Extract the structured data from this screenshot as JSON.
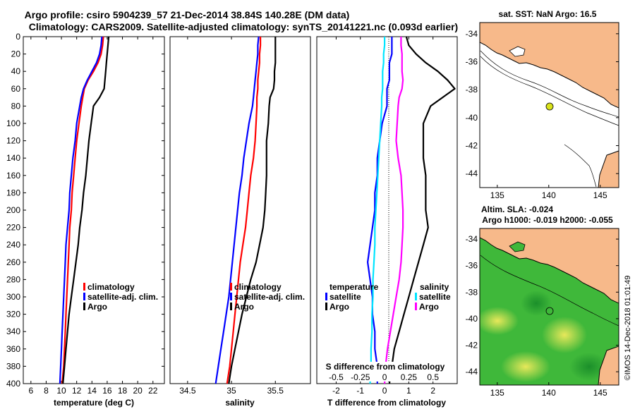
{
  "title": {
    "line1": "Argo profile: csiro 5904239_57 21-Dec-2014 38.84S 140.28E (DM data)",
    "line2": "Climatology: CARS2009. Satellite-adjusted climatology: synTS_20141221.nc (0.093d earlier)"
  },
  "colors": {
    "climatology": "#ff0000",
    "satellite": "#0000ff",
    "argo": "#000000",
    "sal_satellite": "#00e5ff",
    "sal_argo": "#ff00ff",
    "land": "#f7b98a",
    "ocean": "#ffffff",
    "sla_green": "#22a832"
  },
  "chart_data": [
    {
      "type": "line",
      "name": "temperature",
      "xlabel": "temperature (deg C)",
      "ylabel": "",
      "xlim": [
        5,
        23.5
      ],
      "ylim": [
        400,
        0
      ],
      "xticks": [
        "6",
        "8",
        "10",
        "12",
        "14",
        "16",
        "18",
        "20",
        "22"
      ],
      "yticks": [
        "0",
        "20",
        "40",
        "60",
        "80",
        "100",
        "120",
        "140",
        "160",
        "180",
        "200",
        "220",
        "240",
        "260",
        "280",
        "300",
        "320",
        "340",
        "360",
        "380",
        "400"
      ],
      "depth": [
        0,
        10,
        20,
        30,
        40,
        50,
        60,
        70,
        80,
        100,
        120,
        140,
        160,
        180,
        200,
        220,
        240,
        260,
        280,
        300,
        320,
        340,
        360,
        380,
        400
      ],
      "series": [
        {
          "name": "climatology",
          "values": [
            15.5,
            15.4,
            15.2,
            14.8,
            14.2,
            13.5,
            13.0,
            12.8,
            12.6,
            12.3,
            12.0,
            11.8,
            11.6,
            11.4,
            11.3,
            11.1,
            11.0,
            10.9,
            10.8,
            10.7,
            10.6,
            10.5,
            10.4,
            10.3,
            10.1
          ]
        },
        {
          "name": "satellite-adj. clim.",
          "values": [
            15.3,
            15.2,
            15.0,
            14.6,
            14.0,
            13.4,
            12.9,
            12.6,
            12.4,
            12.0,
            11.8,
            11.5,
            11.3,
            11.1,
            11.0,
            10.8,
            10.6,
            10.5,
            10.4,
            10.3,
            10.2,
            10.1,
            10.0,
            9.9,
            9.8
          ]
        },
        {
          "name": "Argo",
          "values": [
            16.2,
            16.1,
            16.0,
            15.9,
            15.8,
            15.7,
            15.6,
            15.0,
            14.2,
            13.9,
            13.6,
            13.4,
            13.2,
            12.9,
            12.7,
            12.4,
            12.2,
            11.9,
            11.6,
            11.3,
            11.0,
            10.8,
            10.6,
            10.4,
            10.2
          ]
        }
      ]
    },
    {
      "type": "line",
      "name": "salinity",
      "xlabel": "salinity",
      "xlim": [
        34.3,
        35.9
      ],
      "ylim": [
        400,
        0
      ],
      "xticks": [
        "34.5",
        "35",
        "35.5"
      ],
      "depth": [
        0,
        10,
        20,
        30,
        40,
        50,
        60,
        70,
        80,
        100,
        120,
        140,
        160,
        180,
        200,
        220,
        240,
        260,
        280,
        300,
        320,
        340,
        360,
        380,
        400
      ],
      "series": [
        {
          "name": "climatology",
          "values": [
            35.33,
            35.33,
            35.32,
            35.32,
            35.31,
            35.3,
            35.3,
            35.29,
            35.29,
            35.28,
            35.27,
            35.25,
            35.22,
            35.2,
            35.18,
            35.16,
            35.13,
            35.1,
            35.08,
            35.06,
            35.04,
            35.02,
            35.0,
            34.98,
            34.95
          ]
        },
        {
          "name": "satellite-adj. clim.",
          "values": [
            35.31,
            35.3,
            35.3,
            35.29,
            35.28,
            35.27,
            35.26,
            35.25,
            35.24,
            35.2,
            35.17,
            35.14,
            35.12,
            35.09,
            35.07,
            35.05,
            35.03,
            35.01,
            34.99,
            34.97,
            34.94,
            34.91,
            34.88,
            34.85,
            34.82
          ]
        },
        {
          "name": "Argo",
          "values": [
            35.5,
            35.5,
            35.5,
            35.5,
            35.49,
            35.49,
            35.48,
            35.44,
            35.43,
            35.42,
            35.4,
            35.4,
            35.4,
            35.39,
            35.38,
            35.36,
            35.32,
            35.28,
            35.22,
            35.17,
            35.12,
            35.08,
            35.04,
            35.0,
            34.97
          ]
        }
      ]
    },
    {
      "type": "line",
      "name": "difference",
      "xlabel": "T difference from climatology",
      "xlabel_top": "S difference from climatology",
      "xlim": [
        -2.8,
        3.0
      ],
      "ylim": [
        400,
        0
      ],
      "xticks": [
        "-2",
        "-1",
        "0",
        "1",
        "2"
      ],
      "xticks_s": [
        "-0.5",
        "-0.25",
        "0",
        "0.25",
        "0.5"
      ],
      "legend_temperature": "temperature",
      "legend_salinity": "salinity",
      "depth": [
        0,
        10,
        20,
        30,
        40,
        50,
        60,
        70,
        80,
        100,
        120,
        140,
        160,
        180,
        200,
        220,
        240,
        260,
        280,
        300,
        320,
        340,
        360,
        380,
        400
      ],
      "series": [
        {
          "name": "satellite",
          "group": "temperature",
          "values": [
            0.3,
            0.3,
            0.3,
            0.2,
            0.2,
            0.2,
            0.1,
            0.1,
            0.1,
            -0.1,
            -0.2,
            -0.3,
            -0.3,
            -0.4,
            -0.4,
            -0.5,
            -0.6,
            -0.7,
            -0.6,
            -0.5,
            -0.5,
            -0.4,
            -0.4,
            -0.3,
            -0.3
          ]
        },
        {
          "name": "Argo",
          "group": "temperature",
          "values": [
            0.9,
            1.0,
            1.3,
            1.7,
            2.2,
            2.6,
            2.9,
            2.4,
            1.9,
            1.6,
            1.6,
            1.6,
            1.7,
            1.7,
            1.7,
            1.8,
            1.6,
            1.4,
            1.2,
            1.0,
            0.8,
            0.6,
            0.4,
            0.3,
            0.2
          ]
        },
        {
          "name": "satellite",
          "group": "salinity",
          "values": [
            0.0,
            0.0,
            -0.01,
            -0.01,
            -0.02,
            -0.02,
            -0.02,
            -0.03,
            -0.03,
            -0.04,
            -0.05,
            -0.06,
            -0.07,
            -0.08,
            -0.09,
            -0.1,
            -0.1,
            -0.11,
            -0.12,
            -0.12,
            -0.13,
            -0.13,
            -0.14,
            -0.14,
            -0.15
          ]
        },
        {
          "name": "Argo",
          "group": "salinity",
          "values": [
            0.17,
            0.17,
            0.18,
            0.18,
            0.18,
            0.19,
            0.18,
            0.15,
            0.14,
            0.13,
            0.12,
            0.14,
            0.17,
            0.18,
            0.19,
            0.19,
            0.18,
            0.17,
            0.15,
            0.12,
            0.09,
            0.06,
            0.03,
            0.01,
            0.0
          ]
        }
      ]
    }
  ],
  "legend": {
    "temp_plot": [
      "climatology",
      "satellite-adj. clim.",
      "Argo"
    ],
    "sal_plot": [
      "climatology",
      "satellite-adj. clim.",
      "Argo"
    ]
  },
  "map_sst": {
    "title": "sat. SST: NaN Argo: 16.5",
    "xticks": [
      "135",
      "140",
      "145"
    ],
    "yticks": [
      "-34",
      "-36",
      "-38",
      "-40",
      "-42",
      "-44"
    ],
    "argo_lon": 140.28,
    "argo_lat": -38.84
  },
  "map_sla": {
    "title1": "Altim. SLA: -0.024",
    "title2": "Argo h1000: -0.019 h2000: -0.055",
    "xticks": [
      "135",
      "140",
      "145"
    ],
    "yticks": [
      "-34",
      "-36",
      "-38",
      "-40",
      "-42",
      "-44"
    ]
  },
  "credit": "©IMOS 14-Dec-2018 01:01:49"
}
